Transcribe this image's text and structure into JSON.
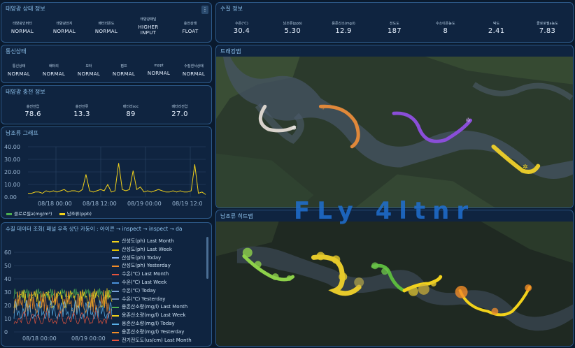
{
  "solar_status": {
    "title": "태양광 상태 정보",
    "items": [
      {
        "label": "태양광인버터",
        "value": "NORMAL"
      },
      {
        "label": "태양광전지",
        "value": "NORMAL"
      },
      {
        "label": "배터리온도",
        "value": "NORMAL"
      },
      {
        "label": "태양광패널",
        "value": "HIGHER INPUT"
      },
      {
        "label": "충전상태",
        "value": "FLOAT"
      }
    ]
  },
  "comm_status": {
    "title": "통신상태",
    "items": [
      {
        "label": "통신상태",
        "value": "NORMAL"
      },
      {
        "label": "배터리",
        "value": "NORMAL"
      },
      {
        "label": "모터",
        "value": "NORMAL"
      },
      {
        "label": "펌프",
        "value": "NORMAL"
      },
      {
        "label": "mppt",
        "value": "NORMAL"
      },
      {
        "label": "수질센서상태",
        "value": "NORMAL"
      }
    ]
  },
  "charge_info": {
    "title": "태양광 충전 정보",
    "items": [
      {
        "label": "충전전압",
        "value": "78.6"
      },
      {
        "label": "충전전류",
        "value": "13.3"
      },
      {
        "label": "배터리soc",
        "value": "89"
      },
      {
        "label": "배터리전압",
        "value": "27.0"
      }
    ]
  },
  "water_quality": {
    "title": "수질 정보",
    "items": [
      {
        "label": "수온(℃)",
        "value": "30.4"
      },
      {
        "label": "남조류(ppb)",
        "value": "5.30"
      },
      {
        "label": "용존산소(mg/l)",
        "value": "12.9"
      },
      {
        "label": "전도도",
        "value": "187"
      },
      {
        "label": "수소이온농도",
        "value": "8"
      },
      {
        "label": "탁도",
        "value": "2.41"
      },
      {
        "label": "클로로필a농도",
        "value": "7.83"
      }
    ]
  },
  "track_map": {
    "title": "트래킹맵"
  },
  "heatmap": {
    "title": "남조류 히트맵"
  },
  "overlay_text": "FLy 4ltnr",
  "algae_chart": {
    "title": "남조류 그래프",
    "legend": [
      {
        "name": "클로로필a(mg/m³)",
        "color": "#4caf50"
      },
      {
        "name": "남조류(ppb)",
        "color": "#f2d21b"
      }
    ]
  },
  "chart_data": {
    "type": "line",
    "title": "남조류 그래프",
    "xlabel": "",
    "ylabel": "",
    "ylim": [
      0,
      40
    ],
    "yticks": [
      "40.00",
      "30.00",
      "20.00",
      "10.00",
      "0.00"
    ],
    "xticks": [
      "08/18 00:00",
      "08/18 12:00",
      "08/19 00:00",
      "08/19 12:0"
    ],
    "series": [
      {
        "name": "남조류(ppb)",
        "color": "#f2d21b",
        "values": [
          3,
          3,
          4,
          4,
          3,
          5,
          4,
          5,
          4,
          5,
          6,
          4,
          5,
          5,
          4,
          6,
          18,
          5,
          4,
          5,
          6,
          5,
          10,
          4,
          5,
          27,
          6,
          5,
          6,
          21,
          6,
          8,
          4,
          5,
          4,
          5,
          6,
          5,
          4,
          4,
          5,
          4,
          5,
          4,
          4,
          5,
          26,
          3,
          4,
          2
        ]
      },
      {
        "name": "클로로필a(mg/m³)",
        "color": "#4caf50",
        "values": []
      }
    ]
  },
  "query_panel": {
    "title": "수질 데이터 조회( 패널 우측 상단 카둥이 : 아이콘 → inspect → inspect → da",
    "yticks": [
      "60",
      "50",
      "40",
      "30",
      "20",
      "10",
      "0"
    ],
    "xticks": [
      "08/18 00:00",
      "08/19 00:00"
    ],
    "legend": [
      {
        "name": "산성도(ph) Last Month",
        "color": "#f2d21b"
      },
      {
        "name": "산성도(ph) Last Week",
        "color": "#e5c100"
      },
      {
        "name": "산성도(ph) Today",
        "color": "#8ab4f8"
      },
      {
        "name": "산성도(ph) Yesterday",
        "color": "#f28c28"
      },
      {
        "name": "수온(℃) Last Month",
        "color": "#e5533d"
      },
      {
        "name": "수온(℃) Last Week",
        "color": "#4a90d9"
      },
      {
        "name": "수온(℃) Today",
        "color": "#7aa3d6"
      },
      {
        "name": "수온(℃) Yesterday",
        "color": "#6b86b0"
      },
      {
        "name": "용존산소량(mg/l) Last Month",
        "color": "#4caf50"
      },
      {
        "name": "용존산소량(mg/l) Last Week",
        "color": "#f2d21b"
      },
      {
        "name": "용존산소량(mg/l) Today",
        "color": "#5ab0e8"
      },
      {
        "name": "용존산소량(mg/l) Yesterday",
        "color": "#f28c28"
      },
      {
        "name": "전기전도도(us/cm) Last Month",
        "color": "#e5533d"
      }
    ]
  }
}
